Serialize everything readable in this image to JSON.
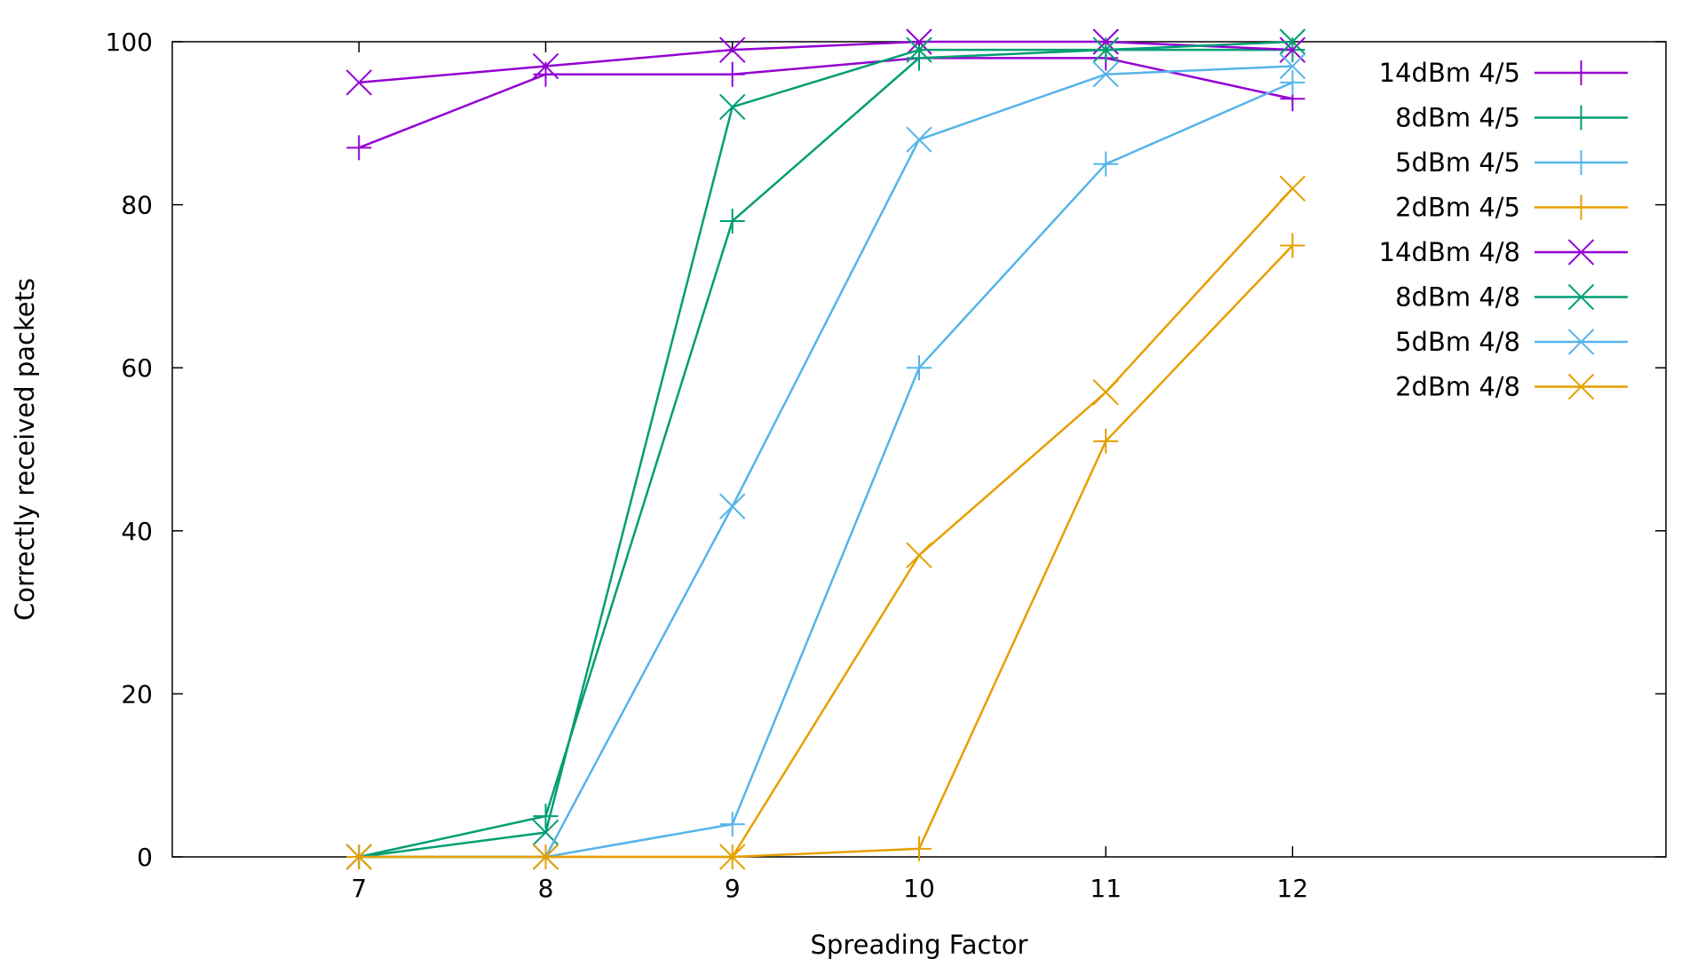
{
  "chart_data": {
    "type": "line",
    "title": "",
    "xlabel": "Spreading Factor",
    "ylabel": "Correctly received packets",
    "x": [
      7,
      8,
      9,
      10,
      11,
      12
    ],
    "xlim": [
      6,
      14
    ],
    "ylim": [
      0,
      100
    ],
    "xticks": [
      7,
      8,
      9,
      10,
      11,
      12
    ],
    "yticks": [
      0,
      20,
      40,
      60,
      80,
      100
    ],
    "grid": false,
    "legend_position": "top-right",
    "series": [
      {
        "name": "14dBm 4/5",
        "marker": "plus",
        "color": "#9400d3",
        "values": [
          87,
          96,
          96,
          98,
          98,
          93
        ]
      },
      {
        "name": "8dBm 4/5",
        "marker": "plus",
        "color": "#009e73",
        "values": [
          0,
          5,
          78,
          98,
          99,
          99
        ]
      },
      {
        "name": "5dBm 4/5",
        "marker": "plus",
        "color": "#56b4e9",
        "values": [
          0,
          0,
          4,
          60,
          85,
          95
        ]
      },
      {
        "name": "2dBm 4/5",
        "marker": "plus",
        "color": "#e69f00",
        "values": [
          0,
          0,
          0,
          1,
          51,
          75
        ]
      },
      {
        "name": "14dBm 4/8",
        "marker": "cross",
        "color": "#9400d3",
        "values": [
          95,
          97,
          99,
          100,
          100,
          99
        ]
      },
      {
        "name": "8dBm 4/8",
        "marker": "cross",
        "color": "#009e73",
        "values": [
          0,
          3,
          92,
          99,
          99,
          100
        ]
      },
      {
        "name": "5dBm 4/8",
        "marker": "cross",
        "color": "#56b4e9",
        "values": [
          0,
          0,
          43,
          88,
          96,
          97
        ]
      },
      {
        "name": "2dBm 4/8",
        "marker": "cross",
        "color": "#e69f00",
        "values": [
          0,
          0,
          0,
          37,
          57,
          82
        ]
      }
    ]
  }
}
